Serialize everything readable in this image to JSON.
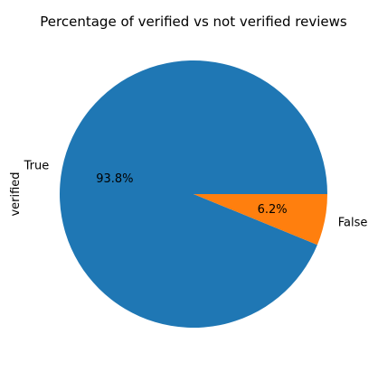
{
  "chart_data": {
    "type": "pie",
    "title": "Percentage of verified vs not verified reviews",
    "ylabel": "verified",
    "categories": [
      "True",
      "False"
    ],
    "values": [
      93.8,
      6.2
    ],
    "percent_labels": [
      "93.8%",
      "6.2%"
    ],
    "colors": [
      "#1f77b4",
      "#ff7f0e"
    ],
    "legend": "none"
  }
}
